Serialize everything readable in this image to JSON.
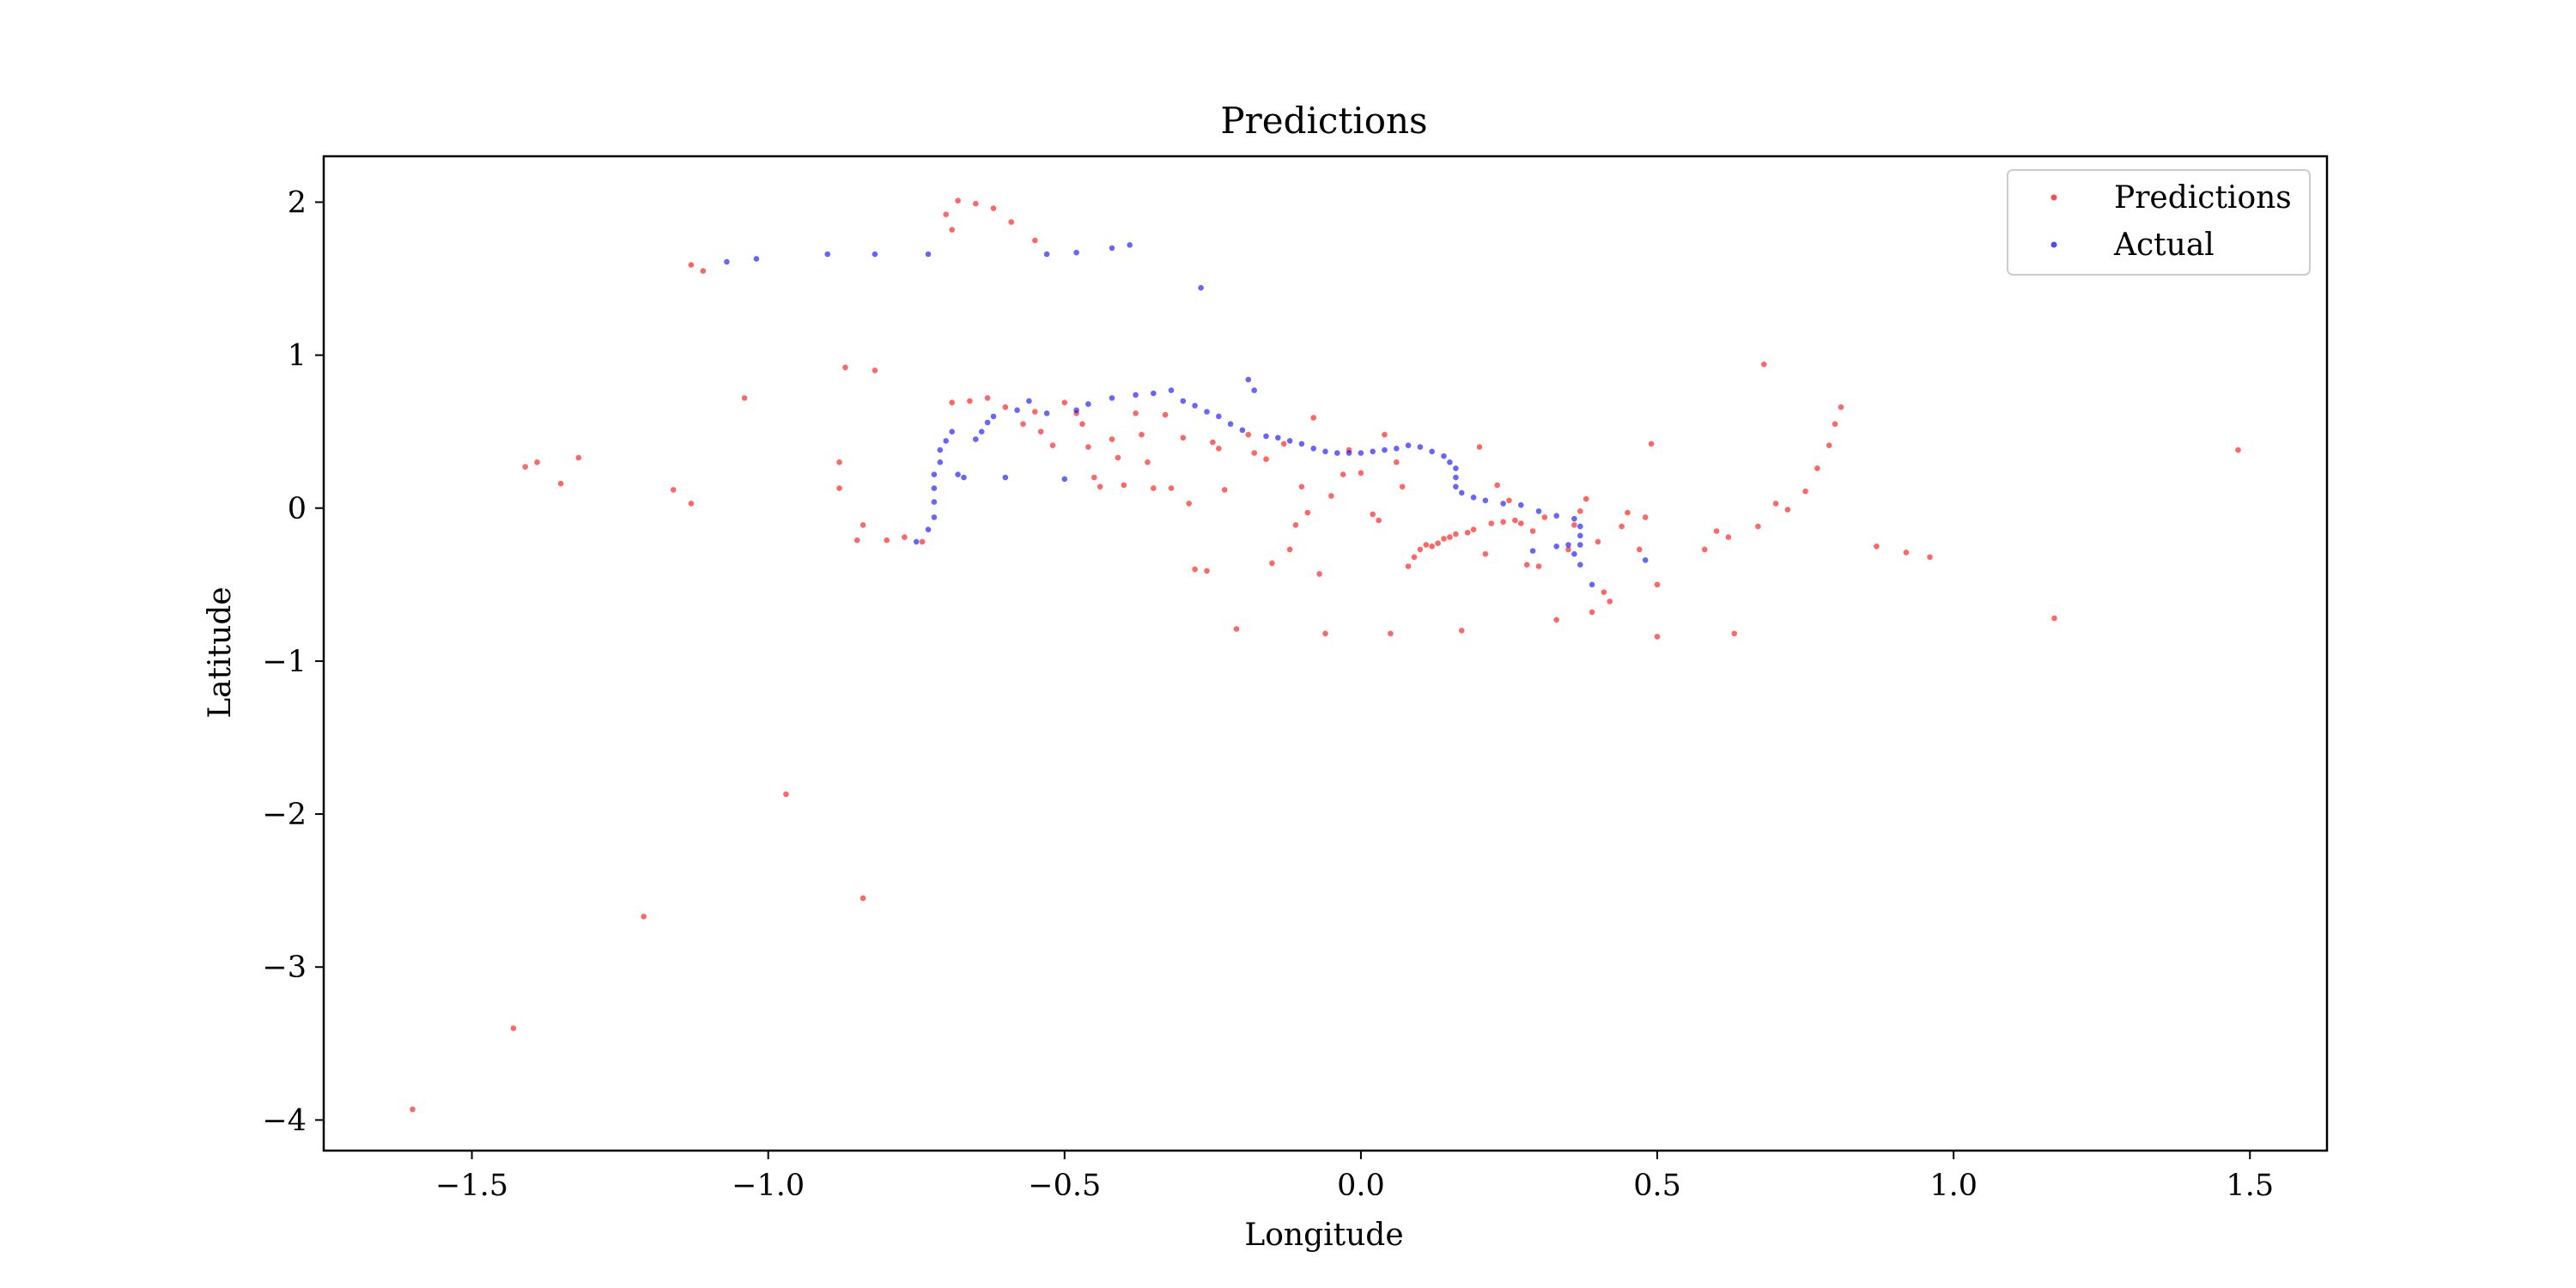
{
  "chart_data": {
    "type": "scatter",
    "title": "Predictions",
    "xlabel": "Longitude",
    "ylabel": "Latitude",
    "xlim": [
      -1.75,
      1.63
    ],
    "ylim": [
      -4.2,
      2.3
    ],
    "xticks": [
      -1.5,
      -1.0,
      -0.5,
      0.0,
      0.5,
      1.0,
      1.5
    ],
    "xtick_labels": [
      "−1.5",
      "−1.0",
      "−0.5",
      "0.0",
      "0.5",
      "1.0",
      "1.5"
    ],
    "yticks": [
      2,
      1,
      0,
      -1,
      -2,
      -3,
      -4
    ],
    "ytick_labels": [
      "2",
      "1",
      "0",
      "−1",
      "−2",
      "−3",
      "−4"
    ],
    "grid": false,
    "legend": "top-right",
    "series": [
      {
        "name": "Predictions",
        "color": "#ff0000",
        "points": [
          [
            -1.6,
            -3.93
          ],
          [
            -1.43,
            -3.4
          ],
          [
            -1.21,
            -2.67
          ],
          [
            -0.97,
            -1.87
          ],
          [
            -0.84,
            -2.55
          ],
          [
            -1.41,
            0.27
          ],
          [
            -1.39,
            0.3
          ],
          [
            -1.35,
            0.16
          ],
          [
            -1.32,
            0.33
          ],
          [
            -1.16,
            0.12
          ],
          [
            -1.13,
            0.03
          ],
          [
            -1.13,
            1.59
          ],
          [
            -1.11,
            1.55
          ],
          [
            -1.04,
            0.72
          ],
          [
            -0.87,
            0.92
          ],
          [
            -0.82,
            0.9
          ],
          [
            -0.88,
            0.3
          ],
          [
            -0.88,
            0.13
          ],
          [
            -0.85,
            -0.21
          ],
          [
            -0.84,
            -0.11
          ],
          [
            -0.8,
            -0.21
          ],
          [
            -0.77,
            -0.19
          ],
          [
            -0.74,
            -0.22
          ],
          [
            -0.7,
            1.92
          ],
          [
            -0.69,
            1.82
          ],
          [
            -0.68,
            2.01
          ],
          [
            -0.65,
            1.99
          ],
          [
            -0.62,
            1.96
          ],
          [
            -0.59,
            1.87
          ],
          [
            -0.55,
            1.75
          ],
          [
            -0.69,
            0.69
          ],
          [
            -0.66,
            0.7
          ],
          [
            -0.63,
            0.72
          ],
          [
            -0.6,
            0.66
          ],
          [
            -0.57,
            0.55
          ],
          [
            -0.55,
            0.63
          ],
          [
            -0.54,
            0.5
          ],
          [
            -0.52,
            0.41
          ],
          [
            -0.5,
            0.69
          ],
          [
            -0.48,
            0.62
          ],
          [
            -0.47,
            0.55
          ],
          [
            -0.46,
            0.4
          ],
          [
            -0.45,
            0.2
          ],
          [
            -0.44,
            0.14
          ],
          [
            -0.42,
            0.45
          ],
          [
            -0.41,
            0.33
          ],
          [
            -0.4,
            0.15
          ],
          [
            -0.38,
            0.62
          ],
          [
            -0.37,
            0.48
          ],
          [
            -0.36,
            0.3
          ],
          [
            -0.35,
            0.13
          ],
          [
            -0.33,
            0.61
          ],
          [
            -0.32,
            0.13
          ],
          [
            -0.3,
            0.46
          ],
          [
            -0.29,
            0.03
          ],
          [
            -0.28,
            -0.4
          ],
          [
            -0.26,
            -0.41
          ],
          [
            -0.25,
            0.43
          ],
          [
            -0.24,
            0.39
          ],
          [
            -0.23,
            0.12
          ],
          [
            -0.21,
            -0.79
          ],
          [
            -0.19,
            0.48
          ],
          [
            -0.18,
            0.36
          ],
          [
            -0.16,
            0.32
          ],
          [
            -0.15,
            -0.36
          ],
          [
            -0.13,
            0.42
          ],
          [
            -0.12,
            -0.27
          ],
          [
            -0.11,
            -0.11
          ],
          [
            -0.1,
            0.14
          ],
          [
            -0.09,
            -0.03
          ],
          [
            -0.08,
            0.59
          ],
          [
            -0.07,
            -0.43
          ],
          [
            -0.06,
            -0.82
          ],
          [
            -0.05,
            0.08
          ],
          [
            -0.03,
            0.22
          ],
          [
            -0.02,
            0.38
          ],
          [
            0.0,
            0.23
          ],
          [
            0.02,
            -0.04
          ],
          [
            0.03,
            -0.08
          ],
          [
            0.04,
            0.48
          ],
          [
            0.05,
            -0.82
          ],
          [
            0.06,
            0.3
          ],
          [
            0.07,
            0.14
          ],
          [
            0.08,
            -0.38
          ],
          [
            0.09,
            -0.32
          ],
          [
            0.1,
            -0.27
          ],
          [
            0.11,
            -0.24
          ],
          [
            0.12,
            -0.25
          ],
          [
            0.13,
            -0.23
          ],
          [
            0.14,
            -0.2
          ],
          [
            0.15,
            -0.19
          ],
          [
            0.16,
            -0.17
          ],
          [
            0.17,
            -0.8
          ],
          [
            0.18,
            -0.16
          ],
          [
            0.19,
            -0.14
          ],
          [
            0.2,
            0.4
          ],
          [
            0.21,
            -0.3
          ],
          [
            0.22,
            -0.1
          ],
          [
            0.23,
            0.15
          ],
          [
            0.24,
            -0.09
          ],
          [
            0.25,
            0.05
          ],
          [
            0.26,
            -0.08
          ],
          [
            0.27,
            -0.1
          ],
          [
            0.28,
            -0.37
          ],
          [
            0.29,
            -0.15
          ],
          [
            0.3,
            -0.38
          ],
          [
            0.31,
            -0.06
          ],
          [
            0.33,
            -0.73
          ],
          [
            0.35,
            -0.27
          ],
          [
            0.36,
            -0.11
          ],
          [
            0.37,
            -0.02
          ],
          [
            0.38,
            0.06
          ],
          [
            0.39,
            -0.68
          ],
          [
            0.4,
            -0.22
          ],
          [
            0.41,
            -0.55
          ],
          [
            0.42,
            -0.61
          ],
          [
            0.44,
            -0.12
          ],
          [
            0.45,
            -0.03
          ],
          [
            0.47,
            -0.27
          ],
          [
            0.48,
            -0.06
          ],
          [
            0.49,
            0.42
          ],
          [
            0.5,
            -0.5
          ],
          [
            0.5,
            -0.84
          ],
          [
            0.58,
            -0.27
          ],
          [
            0.6,
            -0.15
          ],
          [
            0.62,
            -0.19
          ],
          [
            0.63,
            -0.82
          ],
          [
            0.67,
            -0.12
          ],
          [
            0.68,
            0.94
          ],
          [
            0.7,
            0.03
          ],
          [
            0.72,
            -0.01
          ],
          [
            0.75,
            0.11
          ],
          [
            0.77,
            0.26
          ],
          [
            0.79,
            0.41
          ],
          [
            0.8,
            0.55
          ],
          [
            0.81,
            0.66
          ],
          [
            0.87,
            -0.25
          ],
          [
            0.92,
            -0.29
          ],
          [
            0.96,
            -0.32
          ],
          [
            1.17,
            -0.72
          ],
          [
            1.48,
            0.38
          ]
        ]
      },
      {
        "name": "Actual",
        "color": "#0000ff",
        "points": [
          [
            -1.07,
            1.61
          ],
          [
            -1.02,
            1.63
          ],
          [
            -0.9,
            1.66
          ],
          [
            -0.82,
            1.66
          ],
          [
            -0.73,
            1.66
          ],
          [
            -0.53,
            1.66
          ],
          [
            -0.48,
            1.67
          ],
          [
            -0.42,
            1.7
          ],
          [
            -0.39,
            1.72
          ],
          [
            -0.27,
            1.44
          ],
          [
            -0.75,
            -0.22
          ],
          [
            -0.73,
            -0.14
          ],
          [
            -0.72,
            -0.06
          ],
          [
            -0.72,
            0.04
          ],
          [
            -0.72,
            0.13
          ],
          [
            -0.72,
            0.22
          ],
          [
            -0.71,
            0.3
          ],
          [
            -0.71,
            0.38
          ],
          [
            -0.7,
            0.44
          ],
          [
            -0.69,
            0.5
          ],
          [
            -0.68,
            0.22
          ],
          [
            -0.67,
            0.2
          ],
          [
            -0.65,
            0.45
          ],
          [
            -0.64,
            0.5
          ],
          [
            -0.63,
            0.56
          ],
          [
            -0.62,
            0.6
          ],
          [
            -0.6,
            0.2
          ],
          [
            -0.58,
            0.64
          ],
          [
            -0.56,
            0.7
          ],
          [
            -0.53,
            0.62
          ],
          [
            -0.5,
            0.19
          ],
          [
            -0.48,
            0.64
          ],
          [
            -0.46,
            0.68
          ],
          [
            -0.42,
            0.72
          ],
          [
            -0.38,
            0.74
          ],
          [
            -0.35,
            0.75
          ],
          [
            -0.32,
            0.77
          ],
          [
            -0.3,
            0.7
          ],
          [
            -0.28,
            0.67
          ],
          [
            -0.26,
            0.63
          ],
          [
            -0.24,
            0.6
          ],
          [
            -0.22,
            0.55
          ],
          [
            -0.2,
            0.51
          ],
          [
            -0.19,
            0.84
          ],
          [
            -0.18,
            0.77
          ],
          [
            -0.16,
            0.47
          ],
          [
            -0.14,
            0.46
          ],
          [
            -0.12,
            0.44
          ],
          [
            -0.1,
            0.42
          ],
          [
            -0.08,
            0.39
          ],
          [
            -0.06,
            0.37
          ],
          [
            -0.04,
            0.36
          ],
          [
            -0.02,
            0.36
          ],
          [
            0.0,
            0.36
          ],
          [
            0.02,
            0.37
          ],
          [
            0.04,
            0.38
          ],
          [
            0.06,
            0.39
          ],
          [
            0.08,
            0.41
          ],
          [
            0.1,
            0.4
          ],
          [
            0.12,
            0.37
          ],
          [
            0.14,
            0.34
          ],
          [
            0.15,
            0.3
          ],
          [
            0.16,
            0.26
          ],
          [
            0.16,
            0.2
          ],
          [
            0.16,
            0.14
          ],
          [
            0.17,
            0.1
          ],
          [
            0.19,
            0.07
          ],
          [
            0.21,
            0.05
          ],
          [
            0.24,
            0.03
          ],
          [
            0.27,
            0.02
          ],
          [
            0.3,
            -0.02
          ],
          [
            0.33,
            -0.05
          ],
          [
            0.36,
            -0.07
          ],
          [
            0.37,
            -0.12
          ],
          [
            0.37,
            -0.18
          ],
          [
            0.37,
            -0.24
          ],
          [
            0.36,
            -0.3
          ],
          [
            0.37,
            -0.37
          ],
          [
            0.39,
            -0.5
          ],
          [
            0.33,
            -0.25
          ],
          [
            0.29,
            -0.28
          ],
          [
            0.35,
            -0.24
          ],
          [
            0.48,
            -0.34
          ]
        ]
      }
    ]
  }
}
